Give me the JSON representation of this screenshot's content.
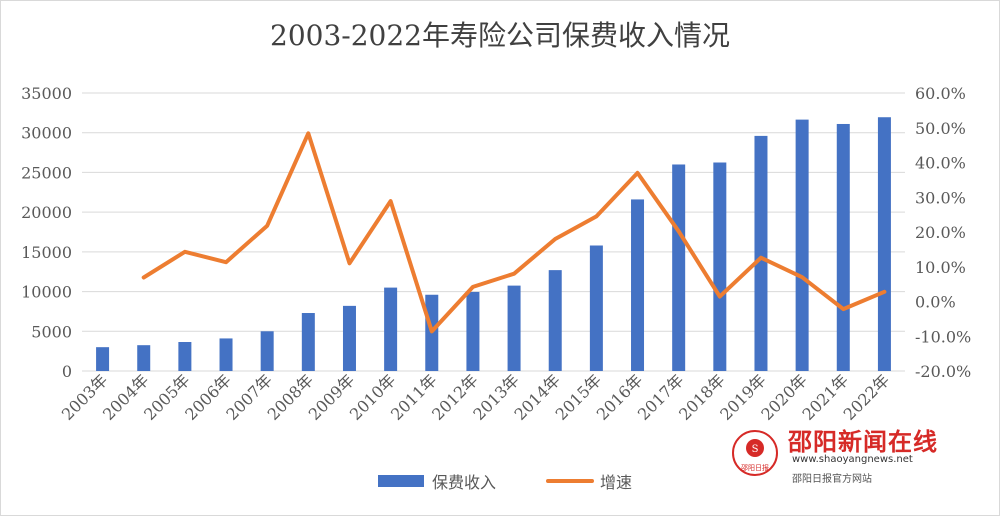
{
  "chart_data": {
    "type": "bar+line",
    "title": "2003-2022年寿险公司保费收入情况",
    "categories": [
      "2003年",
      "2004年",
      "2005年",
      "2006年",
      "2007年",
      "2008年",
      "2009年",
      "2010年",
      "2011年",
      "2012年",
      "2013年",
      "2014年",
      "2015年",
      "2016年",
      "2017年",
      "2018年",
      "2019年",
      "2020年",
      "2021年",
      "2022年"
    ],
    "series": [
      {
        "name": "保费收入",
        "type": "bar",
        "axis": "left",
        "color": "#4472c4",
        "values": [
          3000,
          3250,
          3650,
          4100,
          5000,
          7300,
          8200,
          10500,
          9600,
          9950,
          10750,
          12700,
          15800,
          21600,
          26000,
          26250,
          29600,
          31650,
          31100,
          31950
        ]
      },
      {
        "name": "增速",
        "type": "line",
        "axis": "right",
        "color": "#ed7d31",
        "values": [
          null,
          0.069,
          0.143,
          0.113,
          0.218,
          0.484,
          0.11,
          0.289,
          -0.086,
          0.042,
          0.08,
          0.18,
          0.245,
          0.37,
          0.202,
          0.014,
          0.126,
          0.07,
          -0.022,
          0.028
        ]
      }
    ],
    "ylim_left": [
      0,
      35000
    ],
    "yticks_left": [
      0,
      5000,
      10000,
      15000,
      20000,
      25000,
      30000,
      35000
    ],
    "ytick_labels_left": [
      "0",
      "5000",
      "10000",
      "15000",
      "20000",
      "25000",
      "30000",
      "35000"
    ],
    "ylim_right": [
      -0.2,
      0.6
    ],
    "yticks_right": [
      -0.2,
      -0.1,
      0,
      0.1,
      0.2,
      0.3,
      0.4,
      0.5,
      0.6
    ],
    "ytick_labels_right": [
      "-20.0%",
      "-10.0%",
      "0.0%",
      "10.0%",
      "20.0%",
      "30.0%",
      "40.0%",
      "50.0%",
      "60.0%"
    ],
    "grid": "horizontal",
    "legend": "bottom-center",
    "legend_entries": [
      "保费收入",
      "增速"
    ]
  },
  "watermark": {
    "name": "邵阳新闻在线",
    "url": "www.shaoyangnews.net",
    "sub": "邵阳日报官方网站",
    "logo_text": "邵阳日报"
  }
}
